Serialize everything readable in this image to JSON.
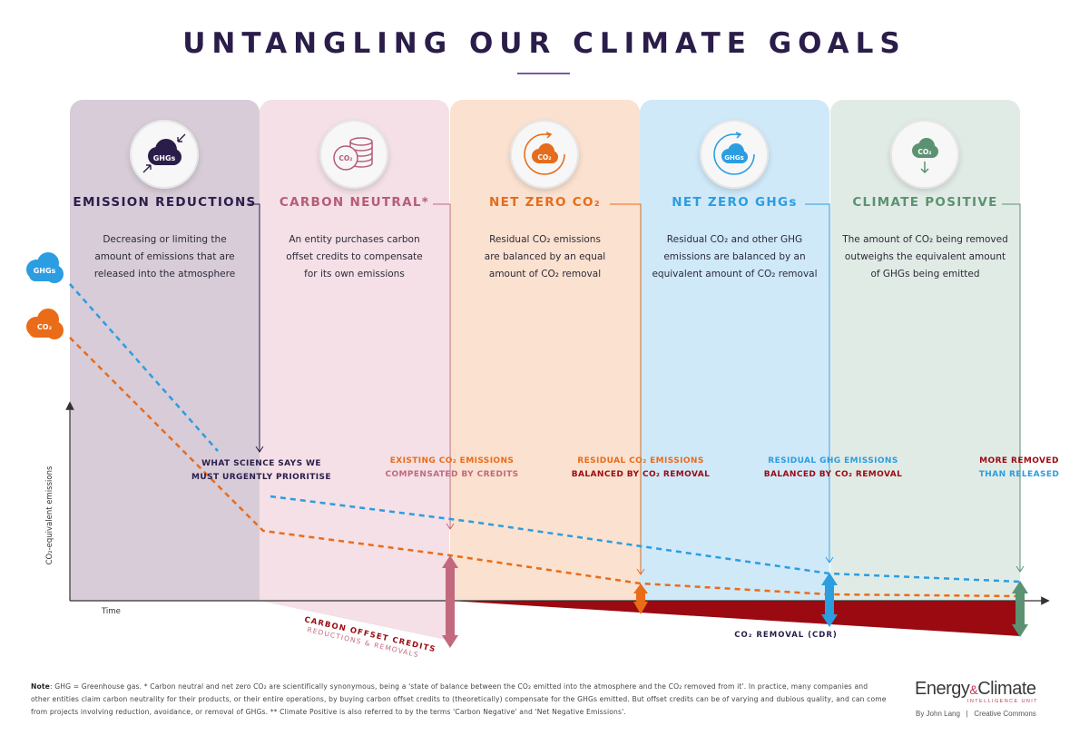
{
  "title": "UNTANGLING OUR CLIMATE GOALS",
  "colors": {
    "ghg_blue": "#2b9de1",
    "co2_orange": "#ea6b18",
    "removal_red": "#9b0a11",
    "credit_pink": "#c2697f",
    "green": "#5b9272"
  },
  "panels": [
    {
      "title": "EMISSION REDUCTIONS",
      "desc": [
        "Decreasing or limiting the",
        "amount of emissions that are",
        "released into the atmosphere"
      ],
      "icon_label": "GHGs",
      "icon": "cloud-arrows-in-icon",
      "bg": "#d7ccd8",
      "title_color": "#2b1d4a"
    },
    {
      "title": "CARBON NEUTRAL*",
      "desc": [
        "An entity purchases carbon",
        "offset credits to compensate",
        "for its own emissions"
      ],
      "icon_label": "CO₂",
      "icon": "coin-stack-icon",
      "bg": "#f4e0e6",
      "title_color": "#b65c78"
    },
    {
      "title": "NET ZERO CO₂",
      "desc": [
        "Residual CO₂ emissions",
        "are balanced by an equal",
        "amount of CO₂ removal"
      ],
      "icon_label": "CO₂",
      "icon": "co2-cycle-icon",
      "bg": "#fbe1cf",
      "title_color": "#e56c1d"
    },
    {
      "title": "NET ZERO GHGs",
      "desc": [
        "Residual CO₂ and other GHG",
        "emissions are balanced by an",
        "equivalent amount of CO₂ removal"
      ],
      "icon_label": "GHGs",
      "icon": "ghg-cycle-icon",
      "bg": "#cfe9f9",
      "title_color": "#2b9de1"
    },
    {
      "title": "CLIMATE POSITIVE",
      "desc": [
        "The amount of CO₂ being removed",
        "outweighs the equivalent amount",
        "of GHGs being emitted"
      ],
      "icon_label": "CO₂",
      "icon": "co2-down-arrow-icon",
      "bg": "#e1ebe5",
      "title_color": "#5b9272"
    }
  ],
  "side_badges": {
    "ghg": "GHGs",
    "co2": "CO₂"
  },
  "annotations": {
    "science": [
      "WHAT SCIENCE SAYS WE",
      "MUST URGENTLY PRIORITISE"
    ],
    "existing": [
      "EXISTING CO₂ EMISSIONS",
      "COMPENSATED BY CREDITS"
    ],
    "residual_co2": [
      "RESIDUAL CO₂ EMISSIONS",
      "BALANCED BY CO₂ REMOVAL"
    ],
    "residual_ghg": [
      "RESIDUAL GHG EMISSIONS",
      "BALANCED BY CO₂ REMOVAL"
    ],
    "more_removed": [
      "MORE REMOVED",
      "THAN RELEASED"
    ],
    "offset_credits": "CARBON OFFSET CREDITS",
    "reductions_removals": "REDUCTIONS & REMOVALS",
    "cdr": "CO₂ REMOVAL (CDR)"
  },
  "axis": {
    "y_label": "CO₂-equivalent emissions",
    "x_label": "Time"
  },
  "note": {
    "label": "Note",
    "text": ": GHG = Greenhouse gas. * Carbon neutral and net zero CO₂ are scientifically synonymous, being a 'state of balance between the CO₂ emitted into the atmosphere and the CO₂ removed from it'. In practice, many companies and other entities claim carbon neutrality for their products, or their entire operations, by buying carbon offset credits to (theoretically) compensate for the GHGs emitted. But offset credits can be of varying and dubious quality, and can come from projects involving reduction, avoidance, or removal of GHGs. ** Climate Positive is also referred to by the terms 'Carbon Negative' and 'Net Negative Emissions'."
  },
  "brand": {
    "name_a": "Energy",
    "amp": "&",
    "name_b": "Climate",
    "sub": "INTELLIGENCE UNIT",
    "byline": "By John Lang   |   Creative Commons"
  }
}
